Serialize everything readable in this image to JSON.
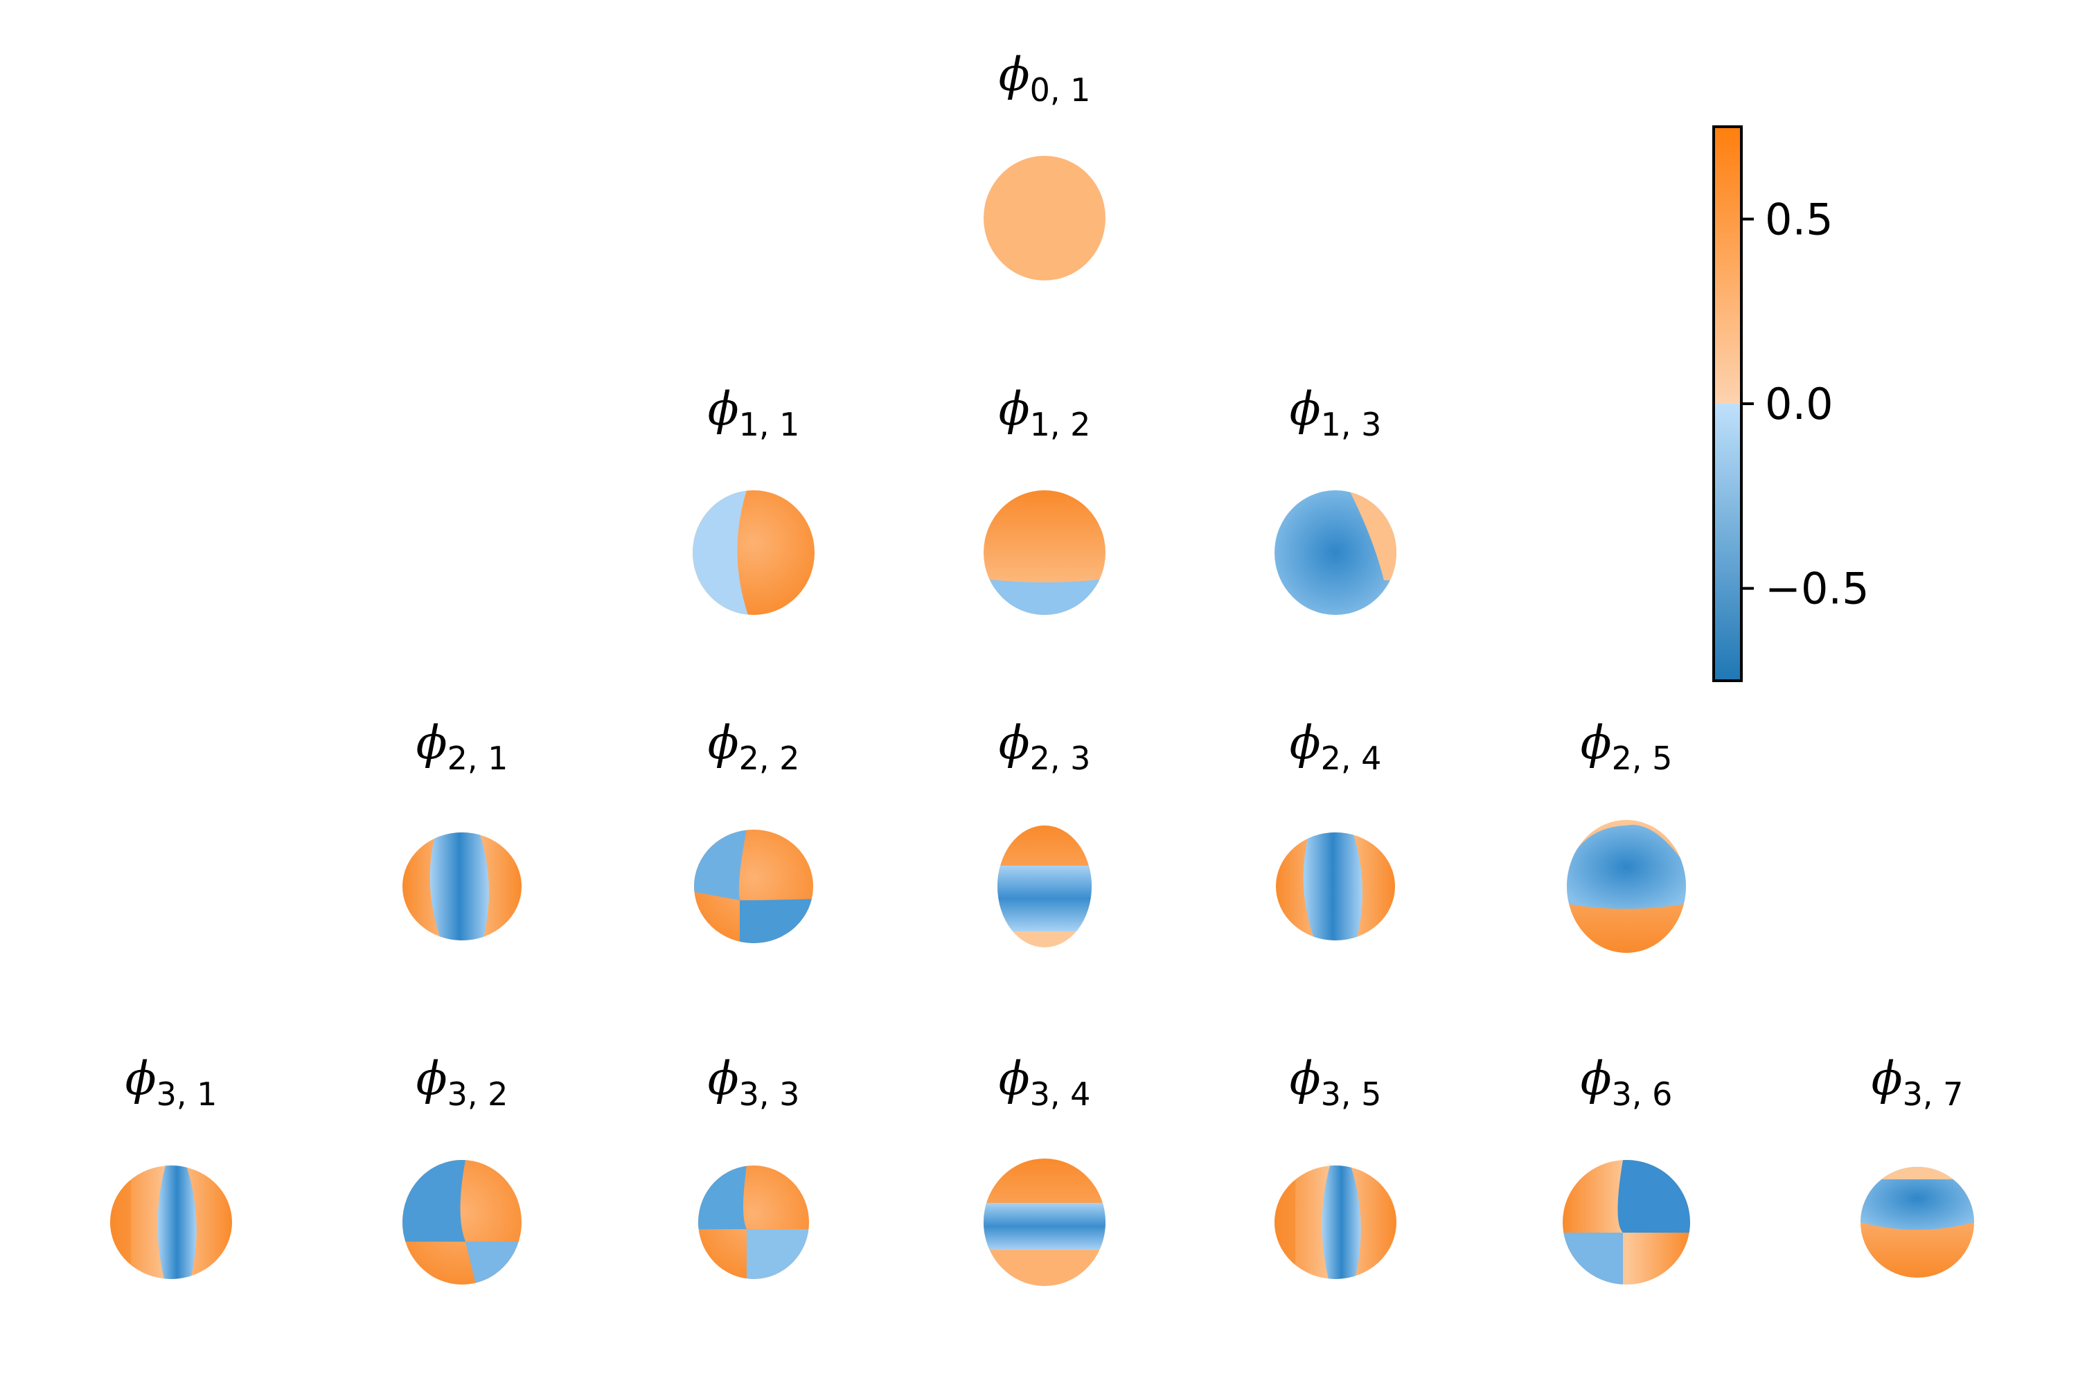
{
  "figure": {
    "symbol": "ϕ",
    "rows": [
      {
        "degree": 0,
        "items": [
          {
            "label": "0, 1",
            "shape": "sphere-uniform"
          }
        ]
      },
      {
        "degree": 1,
        "items": [
          {
            "label": "1, 1",
            "shape": "hemisphere-left-blue"
          },
          {
            "label": "1, 2",
            "shape": "hemisphere-bottom-blue"
          },
          {
            "label": "1, 3",
            "shape": "mostly-blue"
          }
        ]
      },
      {
        "degree": 2,
        "items": [
          {
            "label": "2, 1",
            "shape": "blue-center-band"
          },
          {
            "label": "2, 2",
            "shape": "quadrant-diagonal"
          },
          {
            "label": "2, 3",
            "shape": "horizontal-band"
          },
          {
            "label": "2, 4",
            "shape": "blue-center-band"
          },
          {
            "label": "2, 5",
            "shape": "blue-cap"
          }
        ]
      },
      {
        "degree": 3,
        "items": [
          {
            "label": "3, 1",
            "shape": "vertical-stripes"
          },
          {
            "label": "3, 2",
            "shape": "quadrant-blue-left"
          },
          {
            "label": "3, 3",
            "shape": "quadrant-diagonal-2"
          },
          {
            "label": "3, 4",
            "shape": "horizontal-band-bell"
          },
          {
            "label": "3, 5",
            "shape": "vertical-stripes"
          },
          {
            "label": "3, 6",
            "shape": "quadrant-blue-center"
          },
          {
            "label": "3, 7",
            "shape": "blue-cap-tilted"
          }
        ]
      }
    ]
  },
  "colorbar": {
    "ticks": [
      {
        "value": 0.5,
        "label": "0.5"
      },
      {
        "value": 0.0,
        "label": "0.0"
      },
      {
        "value": -0.5,
        "label": "−0.5"
      }
    ],
    "vmin": -0.75,
    "vmax": 0.75,
    "colors": {
      "low": "#1f77b4",
      "mid_low": "#bfe0fb",
      "mid_high": "#fdd3b0",
      "high": "#ff7f0e"
    }
  }
}
